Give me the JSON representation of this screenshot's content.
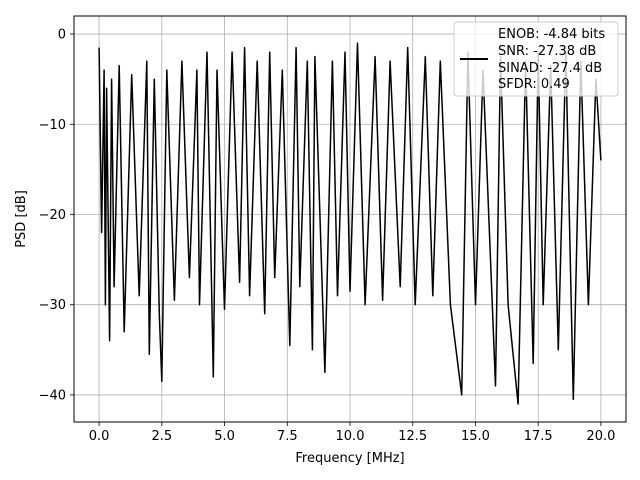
{
  "chart_data": {
    "type": "line",
    "title": "",
    "xlabel": "Frequency [MHz]",
    "ylabel": "PSD [dB]",
    "xlim": [
      -1.0,
      21.0
    ],
    "ylim": [
      -43.0,
      2.0
    ],
    "xticks": [
      0.0,
      2.5,
      5.0,
      7.5,
      10.0,
      12.5,
      15.0,
      17.5,
      20.0
    ],
    "xtick_labels": [
      "0.0",
      "2.5",
      "5.0",
      "7.5",
      "10.0",
      "12.5",
      "15.0",
      "17.5",
      "20.0"
    ],
    "yticks": [
      0,
      -10,
      -20,
      -30,
      -40
    ],
    "ytick_labels": [
      "0",
      "−10",
      "−20",
      "−30",
      "−40"
    ],
    "grid": true,
    "legend_position": "top-right",
    "line_color": "#000000",
    "legend": {
      "lines": [
        "ENOB: -4.84 bits",
        "SNR: -27.38 dB",
        "SINAD: -27.4 dB",
        "SFDR: 0.49"
      ]
    },
    "series": [
      {
        "x": [
          0.0,
          0.1,
          0.2,
          0.25,
          0.3,
          0.42,
          0.5,
          0.6,
          0.8,
          1.0,
          1.3,
          1.6,
          1.9,
          2.0,
          2.2,
          2.4,
          2.5,
          2.7,
          3.0,
          3.3,
          3.6,
          3.9,
          4.0,
          4.3,
          4.55,
          4.7,
          5.0,
          5.3,
          5.6,
          5.8,
          6.0,
          6.3,
          6.6,
          6.8,
          7.0,
          7.3,
          7.6,
          7.85,
          8.0,
          8.3,
          8.5,
          8.6,
          9.0,
          9.3,
          9.5,
          9.8,
          10.0,
          10.3,
          10.6,
          11.0,
          11.3,
          11.6,
          12.0,
          12.3,
          12.6,
          13.0,
          13.3,
          13.6,
          14.0,
          14.45,
          14.7,
          15.0,
          15.3,
          15.8,
          16.0,
          16.3,
          16.7,
          17.0,
          17.3,
          17.5,
          17.7,
          18.0,
          18.3,
          18.6,
          18.9,
          19.2,
          19.5,
          19.8,
          20.0
        ],
        "values": [
          -1.5,
          -22.0,
          -4.0,
          -30.0,
          -6.0,
          -34.0,
          -5.0,
          -28.0,
          -3.5,
          -33.0,
          -4.5,
          -29.0,
          -3.0,
          -35.5,
          -5.0,
          -31.0,
          -38.5,
          -4.0,
          -29.5,
          -3.0,
          -27.0,
          -4.0,
          -30.0,
          -2.0,
          -38.0,
          -4.0,
          -30.5,
          -2.0,
          -27.5,
          -1.5,
          -29.0,
          -3.0,
          -31.0,
          -2.0,
          -27.0,
          -4.0,
          -34.5,
          -1.5,
          -28.0,
          -3.0,
          -35.0,
          -2.5,
          -37.5,
          -3.0,
          -29.0,
          -2.0,
          -28.5,
          -1.0,
          -30.0,
          -2.5,
          -29.5,
          -3.0,
          -28.0,
          -1.5,
          -30.0,
          -2.5,
          -29.0,
          -3.0,
          -30.0,
          -40.0,
          -2.0,
          -30.0,
          -4.0,
          -39.0,
          -2.5,
          -30.0,
          -41.0,
          -3.0,
          -36.5,
          -2.0,
          -30.0,
          -3.5,
          -35.0,
          -2.0,
          -40.5,
          -3.0,
          -30.0,
          -5.0,
          -14.0
        ]
      }
    ]
  }
}
